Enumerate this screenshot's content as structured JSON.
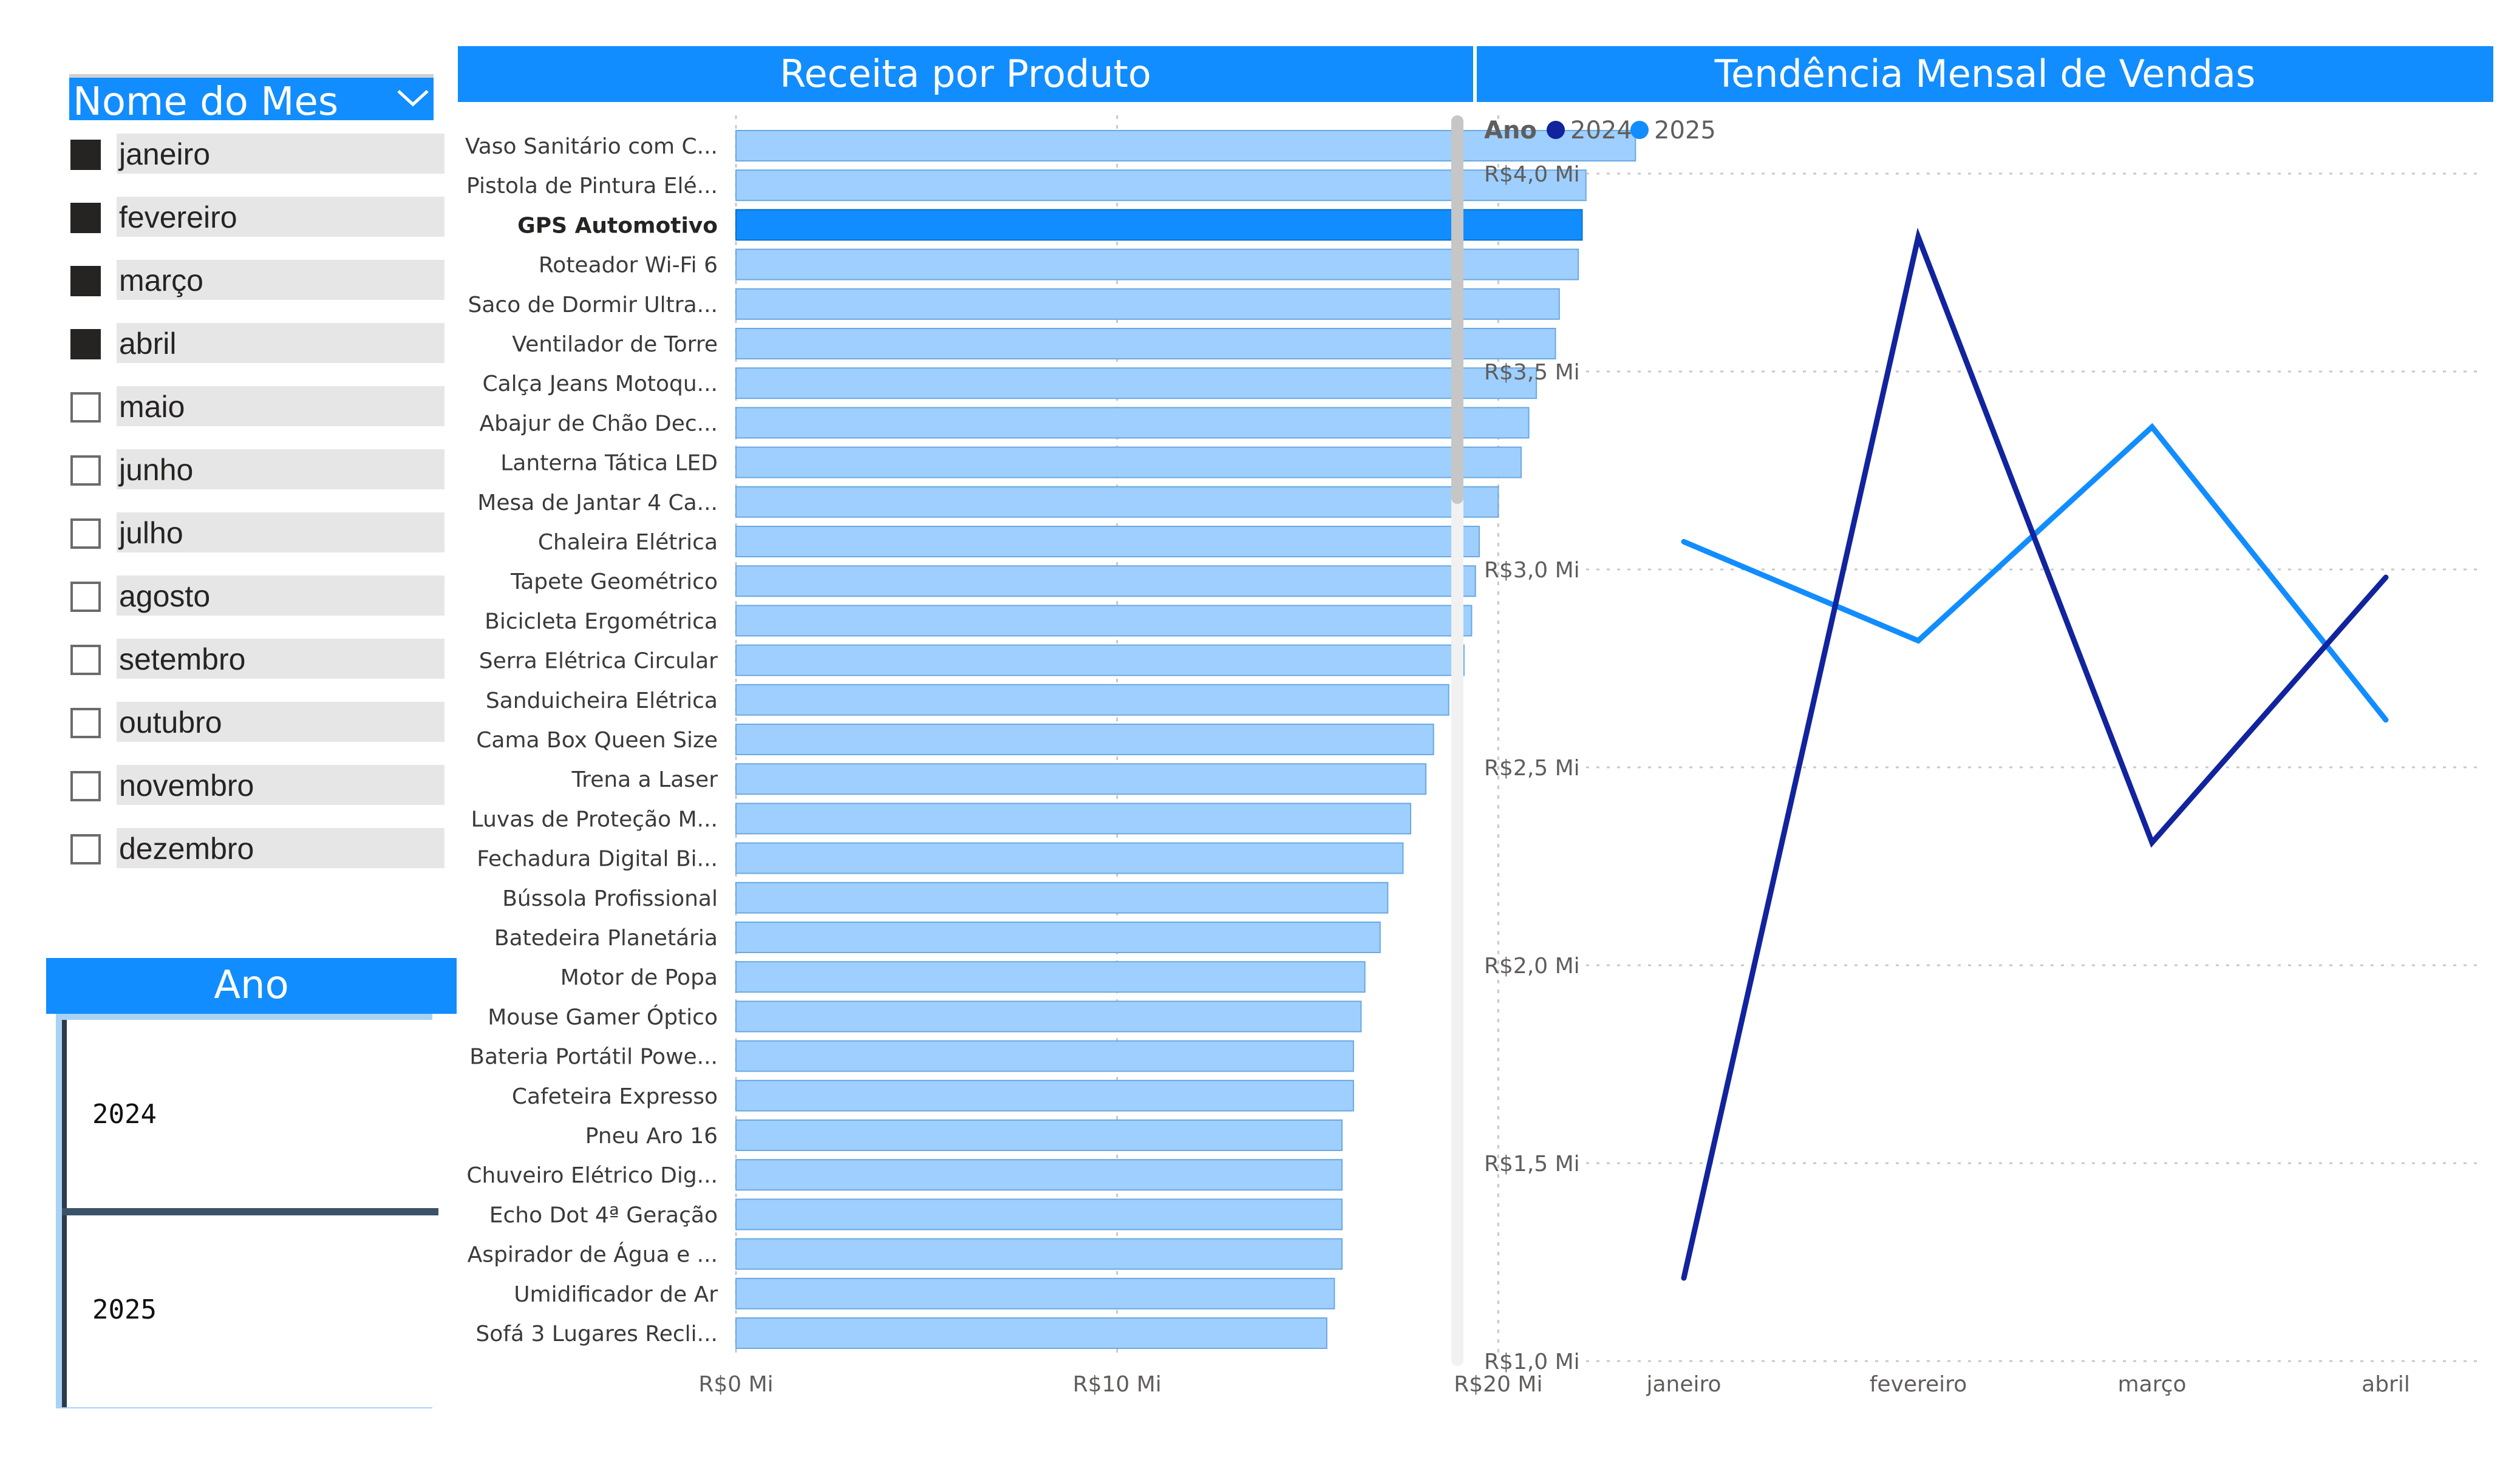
{
  "month_slicer": {
    "title": "Nome do Mes",
    "items": [
      {
        "label": "janeiro",
        "checked": true
      },
      {
        "label": "fevereiro",
        "checked": true
      },
      {
        "label": "março",
        "checked": true
      },
      {
        "label": "abril",
        "checked": true
      },
      {
        "label": "maio",
        "checked": false
      },
      {
        "label": "junho",
        "checked": false
      },
      {
        "label": "julho",
        "checked": false
      },
      {
        "label": "agosto",
        "checked": false
      },
      {
        "label": "setembro",
        "checked": false
      },
      {
        "label": "outubro",
        "checked": false
      },
      {
        "label": "novembro",
        "checked": false
      },
      {
        "label": "dezembro",
        "checked": false
      }
    ]
  },
  "year_slicer": {
    "title": "Ano",
    "tiles": [
      "2024",
      "2025"
    ]
  },
  "colors": {
    "header": "#118DFF",
    "bar": "#9ECFFF",
    "bar_highlight": "#118DFF",
    "series_2024": "#12239E",
    "series_2025": "#118DFF"
  },
  "bar_visual": {
    "title": "Receita por Produto"
  },
  "line_visual": {
    "title": "Tendência Mensal de Vendas"
  },
  "chart_data": [
    {
      "type": "bar",
      "orientation": "horizontal",
      "title": "Receita por Produto",
      "categories": [
        "Vaso Sanitário com C...",
        "Pistola de Pintura Elé...",
        "GPS Automotivo",
        "Roteador Wi-Fi 6",
        "Saco de Dormir Ultra...",
        "Ventilador de Torre",
        "Calça Jeans Motoqu...",
        "Abajur de Chão Dec...",
        "Lanterna Tática LED",
        "Mesa de Jantar 4 Ca...",
        "Chaleira Elétrica",
        "Tapete Geométrico",
        "Bicicleta Ergométrica",
        "Serra Elétrica Circular",
        "Sanduicheira Elétrica",
        "Cama Box Queen Size",
        "Trena a Laser",
        "Luvas de Proteção M...",
        "Fechadura Digital Bi...",
        "Bússola Profissional",
        "Batedeira Planetária",
        "Motor de Popa",
        "Mouse Gamer Óptico",
        "Bateria Portátil Powe...",
        "Cafeteira Expresso",
        "Pneu Aro 16",
        "Chuveiro Elétrico Dig...",
        "Echo Dot 4ª Geração",
        "Aspirador de Água e ...",
        "Umidificador de Ar",
        "Sofá 3 Lugares Recli..."
      ],
      "values": [
        23.6,
        22.3,
        22.2,
        22.1,
        21.6,
        21.5,
        21.0,
        20.8,
        20.6,
        20.0,
        19.5,
        19.4,
        19.3,
        19.1,
        18.7,
        18.3,
        18.1,
        17.7,
        17.5,
        17.1,
        16.9,
        16.5,
        16.4,
        16.2,
        16.2,
        15.9,
        15.9,
        15.9,
        15.9,
        15.7,
        15.5
      ],
      "highlighted": "GPS Automotivo",
      "xlim": [
        0,
        26
      ],
      "xticks": [
        0,
        10,
        20
      ],
      "xtick_labels": [
        "R$0 Mi",
        "R$10 Mi",
        "R$20 Mi"
      ],
      "grid": true
    },
    {
      "type": "line",
      "title": "Tendência Mensal de Vendas",
      "legend_title": "Ano",
      "legend_position": "top-left",
      "categories": [
        "janeiro",
        "fevereiro",
        "março",
        "abril"
      ],
      "series": [
        {
          "name": "2024",
          "values": [
            1.21,
            3.84,
            2.31,
            2.98
          ]
        },
        {
          "name": "2025",
          "values": [
            3.07,
            2.82,
            3.36,
            2.62
          ]
        }
      ],
      "ylim": [
        1.0,
        4.0
      ],
      "yticks": [
        1.0,
        1.5,
        2.0,
        2.5,
        3.0,
        3.5,
        4.0
      ],
      "ytick_labels": [
        "R$1,0 Mi",
        "R$1,5 Mi",
        "R$2,0 Mi",
        "R$2,5 Mi",
        "R$3,0 Mi",
        "R$3,5 Mi",
        "R$4,0 Mi"
      ],
      "grid": true
    }
  ]
}
